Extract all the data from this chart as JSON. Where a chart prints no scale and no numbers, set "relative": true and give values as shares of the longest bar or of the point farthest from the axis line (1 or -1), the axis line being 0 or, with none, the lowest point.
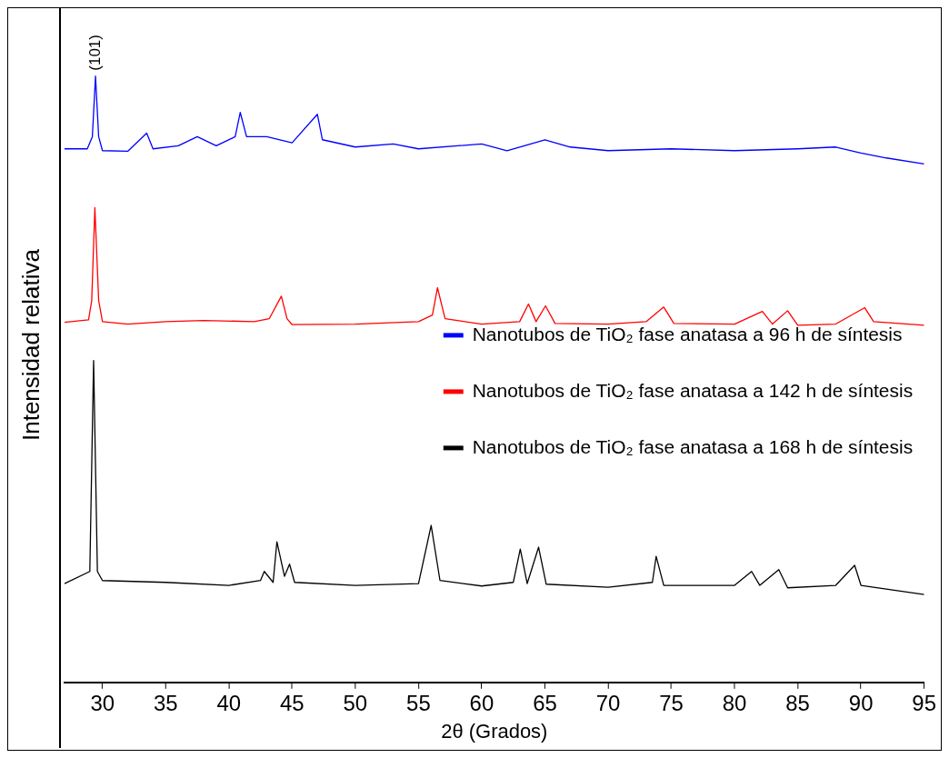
{
  "chart_data": {
    "type": "line",
    "relative": true,
    "xlabel": "2θ (Grados)",
    "ylabel": "Intensidad relativa",
    "xlim": [
      27,
      95
    ],
    "xticks": [
      30,
      35,
      40,
      45,
      50,
      55,
      60,
      65,
      70,
      75,
      80,
      85,
      90,
      95
    ],
    "grid": false,
    "legend": "right",
    "marker": "none",
    "line_style": "solid",
    "annotations": [
      {
        "text": "(101)",
        "x": 29.45,
        "y": 1.0
      }
    ],
    "series": [
      {
        "name": "Nanotubos de TiO₂ fase anatasa a 96 h de síntesis",
        "color": "#0000ff",
        "x": [
          27,
          28.8,
          29.2,
          29.45,
          29.7,
          30,
          32,
          33.5,
          34,
          36,
          37.5,
          39,
          40.5,
          40.9,
          41.4,
          43,
          45,
          47.0,
          47.4,
          50,
          53,
          55,
          60,
          62,
          65,
          67,
          70,
          75,
          80,
          85,
          88,
          90,
          92,
          95
        ],
        "values": [
          0.88,
          0.88,
          0.9,
          1.0,
          0.9,
          0.877,
          0.876,
          0.906,
          0.88,
          0.885,
          0.9,
          0.885,
          0.9,
          0.94,
          0.9,
          0.9,
          0.89,
          0.937,
          0.895,
          0.883,
          0.888,
          0.88,
          0.888,
          0.877,
          0.895,
          0.883,
          0.877,
          0.88,
          0.877,
          0.88,
          0.883,
          0.873,
          0.865,
          0.855
        ]
      },
      {
        "name": "Nanotubos de TiO₂ fase anatasa a 142 h de síntesis",
        "color": "#ff0000",
        "x": [
          27,
          28.9,
          29.15,
          29.4,
          29.7,
          30,
          32,
          35,
          38,
          42,
          43.2,
          44.15,
          44.6,
          45,
          50,
          55,
          56.1,
          56.5,
          57.1,
          60,
          63,
          63.7,
          64.3,
          65.05,
          65.8,
          70,
          73,
          74.4,
          75.2,
          80,
          82.2,
          83,
          84.2,
          85,
          88,
          90.3,
          91,
          95
        ],
        "values": [
          0.594,
          0.598,
          0.63,
          0.783,
          0.63,
          0.595,
          0.591,
          0.595,
          0.597,
          0.595,
          0.6,
          0.637,
          0.6,
          0.59,
          0.591,
          0.595,
          0.606,
          0.651,
          0.6,
          0.591,
          0.595,
          0.624,
          0.595,
          0.621,
          0.592,
          0.591,
          0.595,
          0.619,
          0.592,
          0.591,
          0.612,
          0.591,
          0.613,
          0.589,
          0.591,
          0.618,
          0.595,
          0.589
        ]
      },
      {
        "name": "Nanotubos de TiO₂ fase anatasa a 168 h de síntesis",
        "color": "#000000",
        "x": [
          27,
          29.0,
          29.3,
          29.6,
          30,
          35,
          40,
          42.5,
          42.8,
          43.5,
          43.8,
          44.4,
          44.8,
          45.2,
          50,
          55,
          56.0,
          56.7,
          60,
          62.5,
          63.05,
          63.6,
          64.5,
          65.1,
          70,
          73.5,
          73.8,
          74.4,
          80,
          81.35,
          82,
          83.5,
          84.2,
          88,
          89.5,
          90,
          95
        ],
        "values": [
          0.163,
          0.183,
          0.531,
          0.183,
          0.168,
          0.165,
          0.16,
          0.168,
          0.183,
          0.165,
          0.232,
          0.175,
          0.195,
          0.165,
          0.16,
          0.163,
          0.259,
          0.168,
          0.159,
          0.165,
          0.22,
          0.163,
          0.223,
          0.162,
          0.157,
          0.165,
          0.208,
          0.16,
          0.16,
          0.183,
          0.16,
          0.186,
          0.156,
          0.16,
          0.193,
          0.16,
          0.145
        ]
      }
    ]
  }
}
